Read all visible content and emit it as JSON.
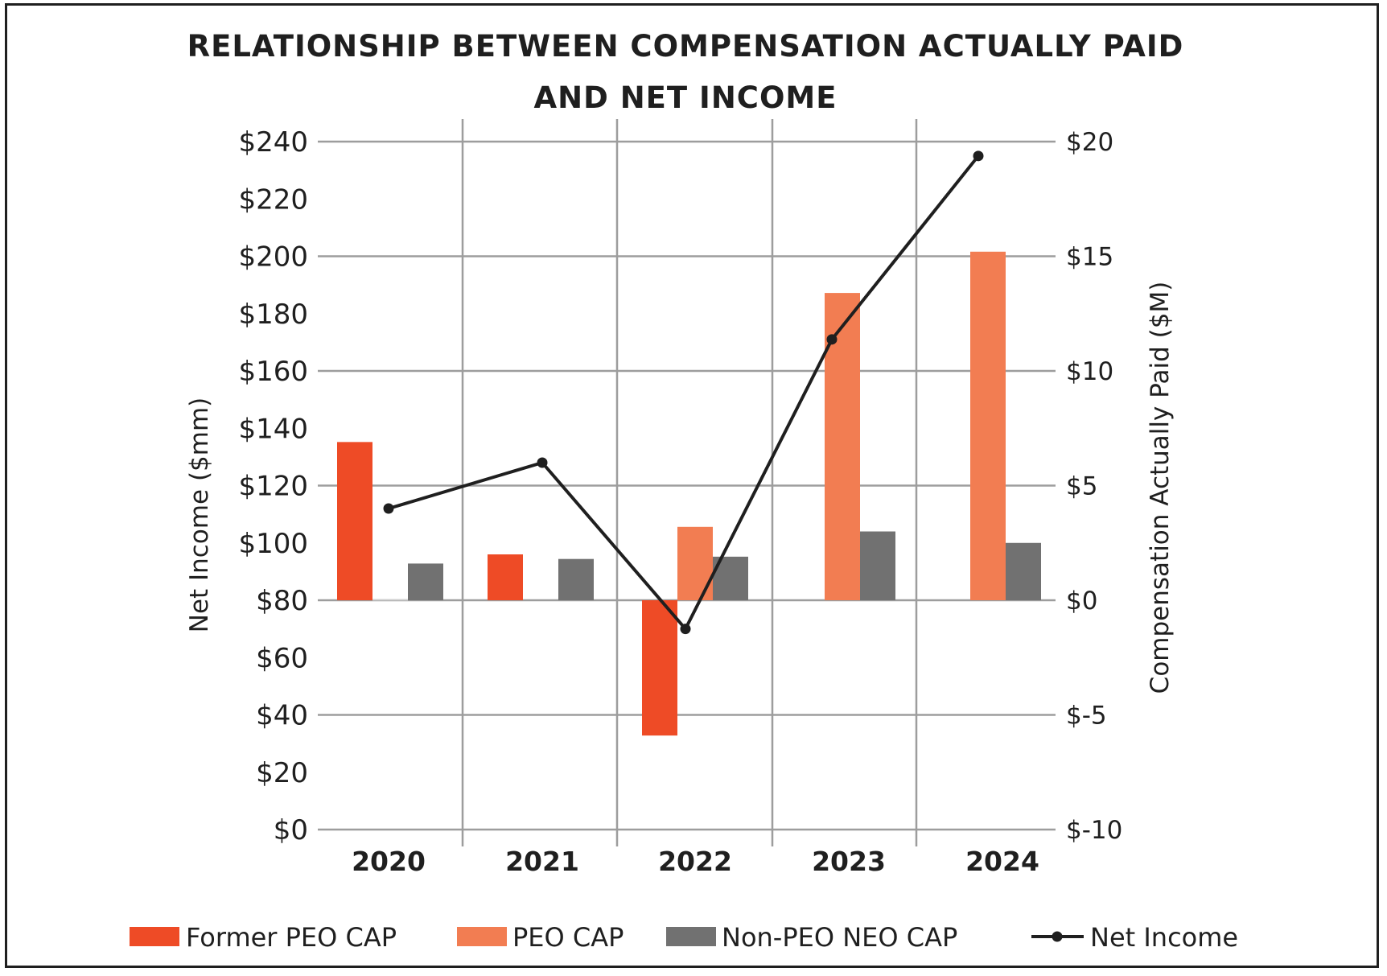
{
  "chart_data": {
    "type": "bar",
    "title_lines": [
      "RELATIONSHIP BETWEEN COMPENSATION ACTUALLY PAID",
      "AND NET INCOME"
    ],
    "categories": [
      "2020",
      "2021",
      "2022",
      "2023",
      "2024"
    ],
    "left_axis": {
      "label": "Net Income ($mm)",
      "range": [
        0,
        240
      ],
      "ticks": [
        {
          "value": 0,
          "label": "$0"
        },
        {
          "value": 20,
          "label": "$20"
        },
        {
          "value": 40,
          "label": "$40"
        },
        {
          "value": 60,
          "label": "$60"
        },
        {
          "value": 80,
          "label": "$80"
        },
        {
          "value": 100,
          "label": "$100"
        },
        {
          "value": 120,
          "label": "$120"
        },
        {
          "value": 140,
          "label": "$140"
        },
        {
          "value": 160,
          "label": "$160"
        },
        {
          "value": 180,
          "label": "$180"
        },
        {
          "value": 200,
          "label": "$200"
        },
        {
          "value": 220,
          "label": "$220"
        },
        {
          "value": 240,
          "label": "$240"
        }
      ]
    },
    "right_axis": {
      "label": "Compensation Actually Paid ($M)",
      "range": [
        -10,
        20
      ],
      "ticks": [
        {
          "value": -10,
          "label": "$-10"
        },
        {
          "value": -5,
          "label": "$-5"
        },
        {
          "value": 0,
          "label": "$0"
        },
        {
          "value": 5,
          "label": "$5"
        },
        {
          "value": 10,
          "label": "$10"
        },
        {
          "value": 15,
          "label": "$15"
        },
        {
          "value": 20,
          "label": "$20"
        }
      ]
    },
    "series": [
      {
        "name": "Former PEO CAP",
        "type": "bar",
        "axis": "right",
        "color": "#ee4b26",
        "values": [
          6.9,
          2.0,
          -5.9,
          null,
          null
        ]
      },
      {
        "name": "PEO CAP",
        "type": "bar",
        "axis": "right",
        "color": "#f27d52",
        "values": [
          0,
          null,
          3.2,
          13.4,
          15.2
        ]
      },
      {
        "name": "Non-PEO NEO CAP",
        "type": "bar",
        "axis": "right",
        "color": "#717171",
        "values": [
          1.6,
          1.8,
          1.9,
          3.0,
          2.5
        ]
      },
      {
        "name": "Net Income",
        "type": "line",
        "axis": "left",
        "color": "#1f1f1f",
        "values": [
          112,
          128,
          70,
          171,
          235
        ]
      }
    ],
    "legend_position": "bottom",
    "grid": true
  }
}
